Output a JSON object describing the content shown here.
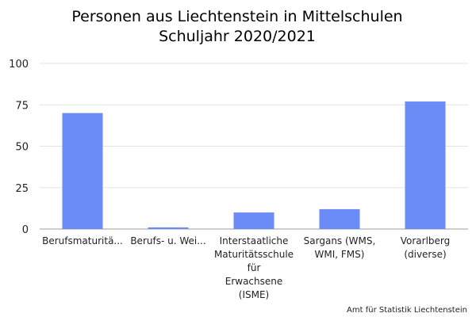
{
  "chart_data": {
    "type": "bar",
    "title_lines": [
      "Personen aus Liechtenstein in Mittelschulen",
      "Schuljahr 2020/2021"
    ],
    "categories": [
      [
        "Berufsmaturitä..."
      ],
      [
        "Berufs- u. Wei..."
      ],
      [
        "Interstaatliche",
        "Maturitätsschule",
        "für",
        "Erwachsene",
        "(ISME)"
      ],
      [
        "Sargans (WMS,",
        "WMI, FMS)"
      ],
      [
        "Vorarlberg",
        "(diverse)"
      ]
    ],
    "values": [
      70,
      1,
      10,
      12,
      77
    ],
    "ylim": [
      0,
      100
    ],
    "yticks": [
      0,
      25,
      50,
      75,
      100
    ],
    "grid": true,
    "bar_color": "#6b8cf7",
    "source": "Amt für Statistik Liechtenstein"
  }
}
